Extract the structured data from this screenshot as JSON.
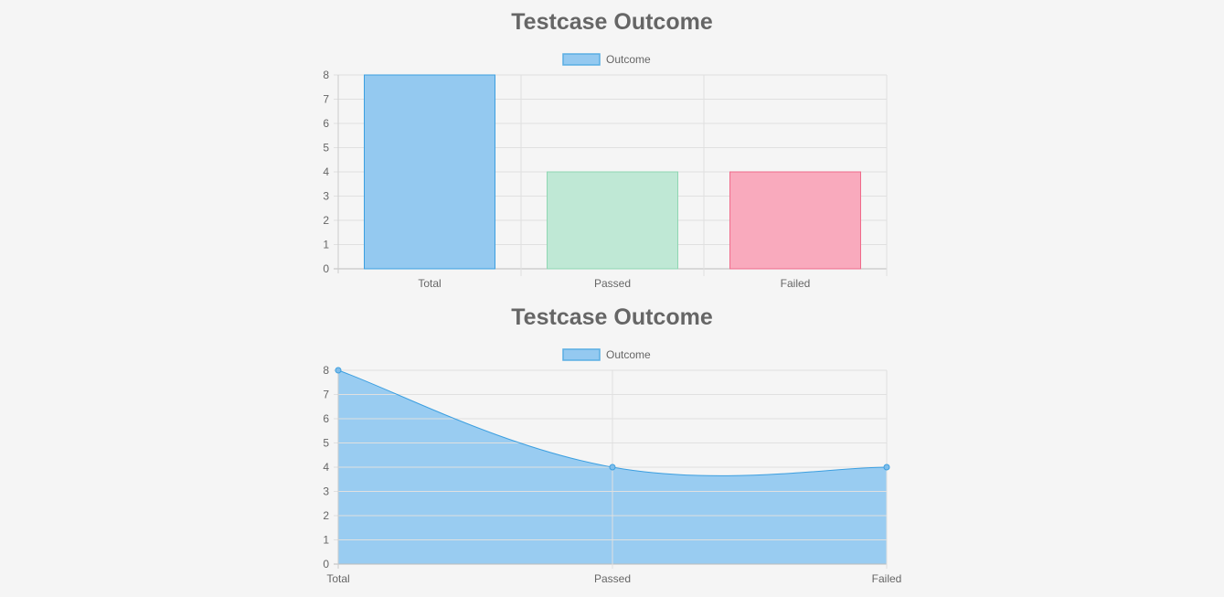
{
  "chart_data": [
    {
      "type": "bar",
      "title": "Testcase Outcome",
      "legend": {
        "label": "Outcome",
        "position": "top",
        "color": "#94c9f0",
        "border": "#5aaee3"
      },
      "categories": [
        "Total",
        "Passed",
        "Failed"
      ],
      "series": [
        {
          "name": "Outcome",
          "values": [
            8,
            4,
            4
          ]
        }
      ],
      "bar_colors": [
        {
          "fill": "#94c9f0",
          "stroke": "#3c9fe0"
        },
        {
          "fill": "#bfe8d5",
          "stroke": "#8fd6b2"
        },
        {
          "fill": "#f9aabd",
          "stroke": "#f06a8a"
        }
      ],
      "ylim": [
        0,
        8
      ],
      "yticks": [
        0,
        1,
        2,
        3,
        4,
        5,
        6,
        7,
        8
      ],
      "grid": true
    },
    {
      "type": "area",
      "title": "Testcase Outcome",
      "legend": {
        "label": "Outcome",
        "position": "top",
        "color": "#94c9f0",
        "border": "#5aaee3"
      },
      "categories": [
        "Total",
        "Passed",
        "Failed"
      ],
      "series": [
        {
          "name": "Outcome",
          "values": [
            8,
            4,
            4
          ]
        }
      ],
      "fill": "#94c9f0",
      "stroke": "#3c9fe0",
      "ylim": [
        0,
        8
      ],
      "yticks": [
        0,
        1,
        2,
        3,
        4,
        5,
        6,
        7,
        8
      ],
      "grid": true
    }
  ]
}
